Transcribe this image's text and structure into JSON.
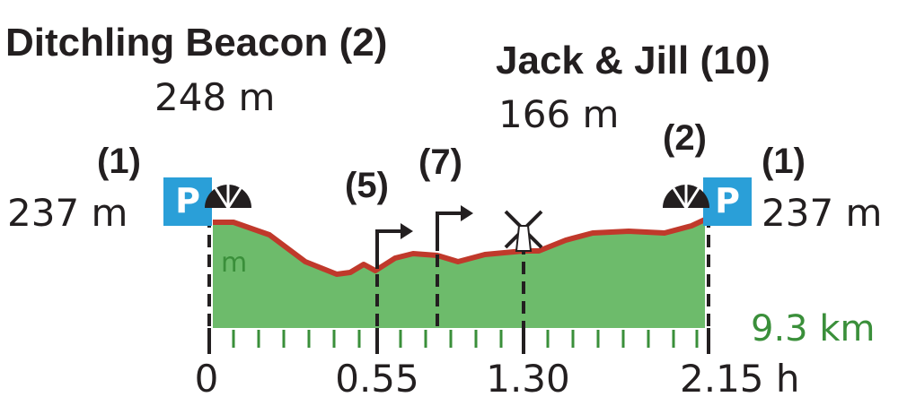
{
  "start": {
    "name": "Ditchling Beacon (2)",
    "elevation": "248 m"
  },
  "peak": {
    "name": "Jack & Jill (10)",
    "elevation": "166 m"
  },
  "left_end": {
    "marker": "(1)",
    "elevation": "237 m",
    "parking": "P"
  },
  "right_end": {
    "marker": "(1)",
    "elevation": "237 m",
    "parking": "P"
  },
  "waypoints": [
    "(5)",
    "(7)",
    "(2)"
  ],
  "axis": {
    "unit": "m",
    "distance": "9.3 km",
    "times": [
      "0",
      "0.55",
      "1.30",
      "2.15 h"
    ]
  }
}
